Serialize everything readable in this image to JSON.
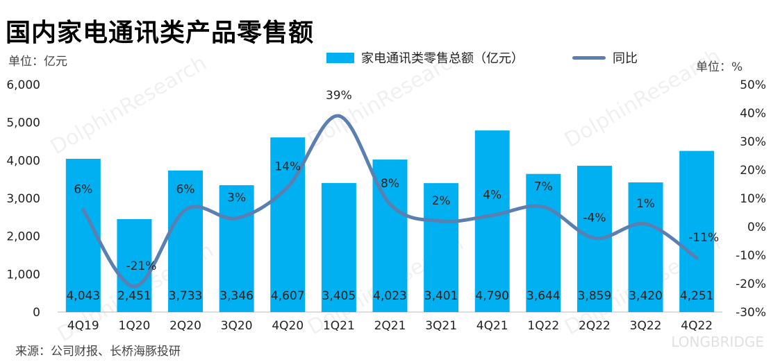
{
  "title": "国内家电通讯类产品零售额",
  "left_unit": "单位：亿元",
  "right_unit": "单位：%",
  "source": "来源：公司财报、长桥海豚投研",
  "watermark": "DolphinResearch",
  "watermark_logo": "LONGBRIDGE",
  "colors": {
    "bar": "#00B0F0",
    "line": "#5B7FB0"
  },
  "chart_data": {
    "type": "bar+line",
    "categories": [
      "4Q19",
      "1Q20",
      "2Q20",
      "3Q20",
      "4Q20",
      "1Q21",
      "2Q21",
      "3Q21",
      "4Q21",
      "1Q22",
      "2Q22",
      "3Q22",
      "4Q22"
    ],
    "series": [
      {
        "name": "家电通讯类零售总额（亿元）",
        "type": "bar",
        "axis": "left",
        "values": [
          4043,
          2451,
          3733,
          3346,
          4607,
          3405,
          4023,
          3401,
          4790,
          3644,
          3859,
          3420,
          4251
        ],
        "labels": [
          "4,043",
          "2,451",
          "3,733",
          "3,346",
          "4,607",
          "3,405",
          "4,023",
          "3,401",
          "4,790",
          "3,644",
          "3,859",
          "3,420",
          "4,251"
        ]
      },
      {
        "name": "同比",
        "type": "line",
        "axis": "right",
        "values": [
          6,
          -21,
          6,
          3,
          14,
          39,
          8,
          2,
          4,
          7,
          -4,
          1,
          -11
        ],
        "labels": [
          "6%",
          "-21%",
          "6%",
          "3%",
          "14%",
          "39%",
          "8%",
          "2%",
          "4%",
          "7%",
          "-4%",
          "1%",
          "-11%"
        ]
      }
    ],
    "left_axis": {
      "ylim": [
        0,
        6000
      ],
      "ticks": [
        "0",
        "1,000",
        "2,000",
        "3,000",
        "4,000",
        "5,000",
        "6,000"
      ]
    },
    "right_axis": {
      "ylim": [
        -30,
        50
      ],
      "ticks": [
        "-30%",
        "-20%",
        "-10%",
        "0%",
        "10%",
        "20%",
        "30%",
        "40%",
        "50%"
      ]
    },
    "legend": "top-center",
    "grid": false
  }
}
